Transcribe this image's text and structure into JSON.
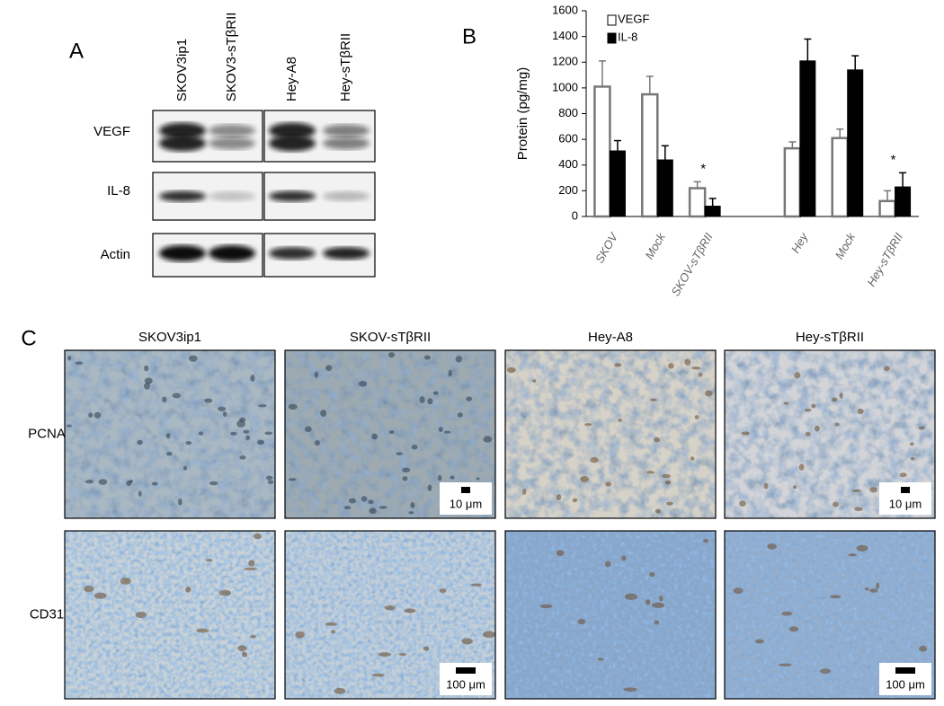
{
  "panel_a": {
    "label": "A",
    "lanes": [
      "SKOV3ip1",
      "SKOV3-sTβRII",
      "Hey-A8",
      "Hey-sTβRII"
    ],
    "rows": [
      "VEGF",
      "IL-8",
      "Actin"
    ]
  },
  "chart_data": {
    "type": "bar",
    "panel_label": "B",
    "categories": [
      "SKOV",
      "Mock",
      "SKOV-sTβRII",
      null,
      "Hey",
      "Mock",
      "Hey-sTβRII"
    ],
    "series": [
      {
        "name": "VEGF",
        "color": "#ffffff",
        "values": [
          1010,
          950,
          220,
          null,
          530,
          610,
          120
        ],
        "errors": [
          200,
          140,
          50,
          null,
          50,
          70,
          80
        ]
      },
      {
        "name": "IL-8",
        "color": "#000000",
        "values": [
          510,
          440,
          80,
          null,
          1210,
          1140,
          230
        ],
        "errors": [
          80,
          110,
          60,
          null,
          170,
          110,
          110
        ]
      }
    ],
    "significance": [
      null,
      null,
      "*",
      null,
      null,
      null,
      "*"
    ],
    "y_label": "Protein (pg/mg)",
    "ylim": [
      0,
      1600
    ],
    "yticks": [
      0,
      200,
      400,
      600,
      800,
      1000,
      1200,
      1400,
      1600
    ],
    "grid": false,
    "legend": "upper left"
  },
  "panel_c": {
    "label": "C",
    "columns": [
      "SKOV3ip1",
      "SKOV-sTβRII",
      "Hey-A8",
      "Hey-sTβRII"
    ],
    "rows": [
      {
        "label": "PCNA",
        "scale_bar": "10 μm"
      },
      {
        "label": "CD31",
        "scale_bar": "100 μm"
      }
    ]
  }
}
